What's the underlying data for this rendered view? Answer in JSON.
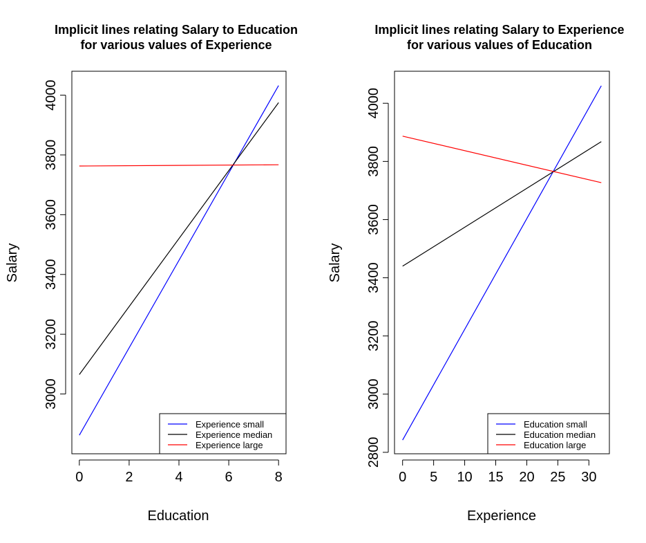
{
  "chart_data": [
    {
      "type": "line",
      "title": [
        "Implicit lines relating Salary to Education",
        "for various values of Experience"
      ],
      "xlabel": "Education",
      "ylabel": "Salary",
      "xlim": [
        -0.3,
        8.3
      ],
      "ylim": [
        2800,
        4080
      ],
      "xticks": [
        0,
        2,
        4,
        6,
        8
      ],
      "yticks": [
        3000,
        3200,
        3400,
        3600,
        3800,
        4000
      ],
      "legend_position": "bottom-right",
      "series": [
        {
          "name": "Experience small",
          "color": "#0000ff",
          "x": [
            0,
            8
          ],
          "y": [
            2862,
            4032
          ]
        },
        {
          "name": "Experience median",
          "color": "#000000",
          "x": [
            0,
            8
          ],
          "y": [
            3065,
            3975
          ]
        },
        {
          "name": "Experience large",
          "color": "#ff0000",
          "x": [
            0,
            8
          ],
          "y": [
            3763,
            3767
          ]
        }
      ]
    },
    {
      "type": "line",
      "title": [
        "Implicit lines relating Salary to Experience",
        "for various values of Education"
      ],
      "xlabel": "Experience",
      "ylabel": "Salary",
      "xlim": [
        -1.3,
        33.3
      ],
      "ylim": [
        2795,
        4110
      ],
      "xticks": [
        0,
        5,
        10,
        15,
        20,
        25,
        30
      ],
      "yticks": [
        2800,
        3000,
        3200,
        3400,
        3600,
        3800,
        4000
      ],
      "legend_position": "bottom-right",
      "series": [
        {
          "name": "Education small",
          "color": "#0000ff",
          "x": [
            0,
            32
          ],
          "y": [
            2842,
            4060
          ]
        },
        {
          "name": "Education median",
          "color": "#000000",
          "x": [
            0,
            32
          ],
          "y": [
            3440,
            3868
          ]
        },
        {
          "name": "Education large",
          "color": "#ff0000",
          "x": [
            0,
            32
          ],
          "y": [
            3887,
            3727
          ]
        }
      ]
    }
  ]
}
